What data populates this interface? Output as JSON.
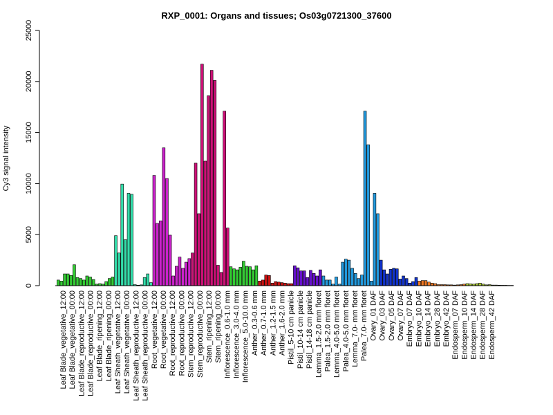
{
  "chart_data": {
    "type": "bar",
    "title": "RXP_0001: Organs and tissues; Os03g0721300_37600",
    "ylabel": "Cy3 signal intensity",
    "xlabel": "",
    "ylim": [
      0,
      25000
    ],
    "yticks": [
      0,
      5000,
      10000,
      15000,
      20000,
      25000
    ],
    "grid": false,
    "legend": "none",
    "categories": [
      "Leaf Blade_vegetative_12:00",
      "Leaf Blade_vegetative_00:00",
      "Leaf Blade_reproductive_12:00",
      "Leaf Blade_reproductive_00:00",
      "Leaf Blade_ripening_12:00",
      "Leaf Blade_ripening_00:00",
      "Leaf Sheath_vegetative_12:00",
      "Leaf Sheath_vegetative_00:00",
      "Leaf Sheath_reproductive_12:00",
      "Leaf Sheath_reproductive_00:00",
      "Root_vegetative_12:00",
      "Root_vegetative_00:00",
      "Root_reproductive_12:00",
      "Root_reproductive_00:00",
      "Stem_reproductive_12:00",
      "Stem_reproductive_00:00",
      "Stem_ripening_12:00",
      "Stem_ripening_00:00",
      "Inflorescence_0.6-1.0 mm",
      "Inflorescence_3.0-4.0 mm",
      "Inflorescence_5.0-10.0 mm",
      "Anther_0.3-0.6 mm",
      "Anther_0.7-1.0 mm",
      "Anther_1.2-1.5 mm",
      "Anther_1.6-2.0 mm",
      "Pistil_5-10 cm panicle",
      "Pistil_10-14 cm panicle",
      "Pistil_14-18 cm panicle",
      "Lemma_1.5-2.0 mm floret",
      "Palea_1.5-2.0 mm floret",
      "Lemma_4.0-5.0 mm floret",
      "Palea_4.0-5.0 mm floret",
      "Lemma_7.0- mm floret",
      "Palea_7.0- mm floret",
      "Ovary_01 DAF",
      "Ovary_03 DAF",
      "Ovary_05 DAF",
      "Ovary_07 DAF",
      "Embryo_07 DAF",
      "Embryo_10 DAF",
      "Embryo_14 DAF",
      "Embryo_28 DAF",
      "Embryo_42 DAF",
      "Endosperm_07 DAF",
      "Endosperm_10 DAF",
      "Endosperm_14 DAF",
      "Endosperm_28 DAF",
      "Endosperm_42 DAF"
    ],
    "groups": [
      {
        "color": "#33cc33",
        "values": [
          550,
          450,
          1150
        ]
      },
      {
        "color": "#33cc33",
        "values": [
          1150,
          1000,
          2050
        ]
      },
      {
        "color": "#33cc33",
        "values": [
          800,
          700,
          550
        ]
      },
      {
        "color": "#33cc33",
        "values": [
          950,
          850,
          600
        ]
      },
      {
        "color": "#33cc33",
        "values": [
          150,
          200,
          150
        ]
      },
      {
        "color": "#33cc33",
        "values": [
          400,
          700,
          850
        ]
      },
      {
        "color": "#33ddaa",
        "values": [
          4900,
          3200,
          9950
        ]
      },
      {
        "color": "#33ddaa",
        "values": [
          4500,
          9050,
          8950
        ]
      },
      {
        "color": "#33ddaa",
        "values": [
          100,
          50,
          80
        ]
      },
      {
        "color": "#33ddaa",
        "values": [
          800,
          1150,
          300
        ]
      },
      {
        "color": "#cc22cc",
        "values": [
          10800,
          6100,
          6350
        ]
      },
      {
        "color": "#cc22cc",
        "values": [
          13500,
          10500,
          4950
        ]
      },
      {
        "color": "#cc22cc",
        "values": [
          950,
          1900,
          2800
        ]
      },
      {
        "color": "#cc22cc",
        "values": [
          1700,
          2300,
          2650
        ]
      },
      {
        "color": "#cc1177",
        "values": [
          3200,
          12000,
          7050
        ]
      },
      {
        "color": "#cc1177",
        "values": [
          21700,
          12200,
          18600
        ]
      },
      {
        "color": "#cc1177",
        "values": [
          21100,
          20100,
          2000
        ]
      },
      {
        "color": "#cc1177",
        "values": [
          1300,
          17100,
          5650
        ]
      },
      {
        "color": "#33cc33",
        "values": [
          1850,
          1650,
          1550
        ]
      },
      {
        "color": "#33cc33",
        "values": [
          1800,
          2400,
          1900
        ]
      },
      {
        "color": "#33cc33",
        "values": [
          1850,
          1550,
          1950
        ]
      },
      {
        "color": "#cc1111",
        "values": [
          450,
          550
        ]
      },
      {
        "color": "#cc1111",
        "values": [
          1050,
          1000,
          250
        ]
      },
      {
        "color": "#cc1111",
        "values": [
          400,
          350,
          300
        ]
      },
      {
        "color": "#cc1111",
        "values": [
          250,
          200,
          200
        ]
      },
      {
        "color": "#6611cc",
        "values": [
          1950,
          1750,
          1450
        ]
      },
      {
        "color": "#6611cc",
        "values": [
          1450,
          800,
          1500
        ]
      },
      {
        "color": "#6611cc",
        "values": [
          1200,
          950,
          1550
        ]
      },
      {
        "color": "#2299dd",
        "values": [
          950,
          550,
          550
        ]
      },
      {
        "color": "#2299dd",
        "values": [
          150,
          850,
          150
        ]
      },
      {
        "color": "#2299dd",
        "values": [
          2300,
          2600,
          2500
        ]
      },
      {
        "color": "#2299dd",
        "values": [
          1700,
          1200,
          700
        ]
      },
      {
        "color": "#2299dd",
        "values": [
          1050,
          17100,
          13800
        ]
      },
      {
        "color": "#2299dd",
        "values": [
          450,
          9050,
          7050
        ]
      },
      {
        "color": "#1133cc",
        "values": [
          2500,
          1550,
          1150
        ]
      },
      {
        "color": "#1133cc",
        "values": [
          1600,
          1700,
          1650
        ]
      },
      {
        "color": "#1133cc",
        "values": [
          650,
          950,
          700
        ]
      },
      {
        "color": "#1133cc",
        "values": [
          250,
          400,
          800
        ]
      },
      {
        "color": "#ee7722",
        "values": [
          450,
          500,
          500
        ]
      },
      {
        "color": "#ee7722",
        "values": [
          350,
          250,
          200
        ]
      },
      {
        "color": "#ee7722",
        "values": [
          100,
          100,
          100
        ]
      },
      {
        "color": "#ee7722",
        "values": [
          80,
          80,
          60
        ]
      },
      {
        "color": "#ee7722",
        "values": [
          80,
          100,
          150
        ]
      },
      {
        "color": "#aacc33",
        "values": [
          200,
          180,
          150
        ]
      },
      {
        "color": "#aacc33",
        "values": [
          200,
          250,
          150
        ]
      },
      {
        "color": "#aacc33",
        "values": [
          80,
          100,
          60
        ]
      },
      {
        "color": "#aacc33",
        "values": [
          60,
          50,
          40
        ]
      },
      {
        "color": "#aacc33",
        "values": [
          40,
          30,
          30
        ]
      }
    ]
  }
}
